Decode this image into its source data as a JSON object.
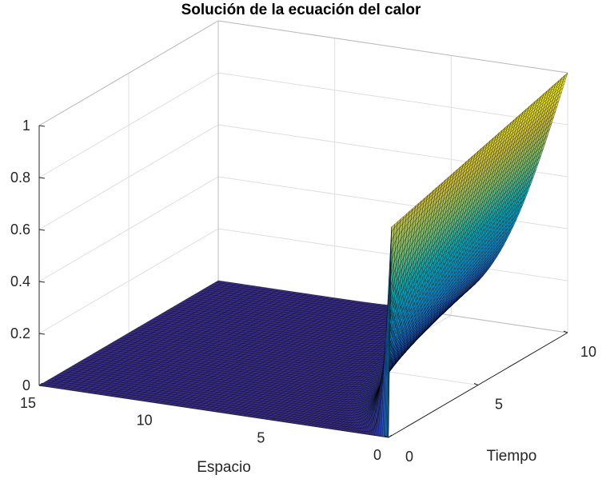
{
  "chart_data": {
    "type": "surface",
    "title": "Solución de la ecuación del calor",
    "xlabel": "Espacio",
    "ylabel": "Tiempo",
    "zlabel": "",
    "x_range": [
      0,
      15
    ],
    "y_range": [
      0,
      10
    ],
    "z_range": [
      0,
      1
    ],
    "x_ticks": [
      "0",
      "5",
      "10",
      "15"
    ],
    "y_ticks": [
      "0",
      "5",
      "10"
    ],
    "z_ticks": [
      "0",
      "0.2",
      "0.4",
      "0.6",
      "0.8",
      "1"
    ],
    "grid": true,
    "colormap": "parula",
    "boundary_condition": {
      "x": 0,
      "value_at_t_start": 0.8,
      "value_at_t_end": 1.0
    },
    "description": ""
  }
}
